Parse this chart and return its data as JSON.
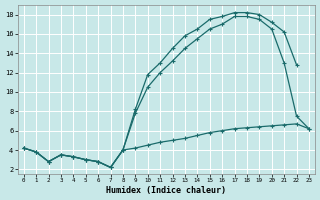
{
  "xlabel": "Humidex (Indice chaleur)",
  "xlim": [
    -0.5,
    23.5
  ],
  "ylim": [
    1.5,
    19.0
  ],
  "yticks": [
    2,
    4,
    6,
    8,
    10,
    12,
    14,
    16,
    18
  ],
  "xticks": [
    0,
    1,
    2,
    3,
    4,
    5,
    6,
    7,
    8,
    9,
    10,
    11,
    12,
    13,
    14,
    15,
    16,
    17,
    18,
    19,
    20,
    21,
    22,
    23
  ],
  "bg_color": "#c8e8e8",
  "grid_color": "#b0d4d4",
  "line_color": "#1a6b6b",
  "line1_x": [
    0,
    1,
    2,
    3,
    4,
    5,
    6,
    7,
    8,
    9,
    10,
    11,
    12,
    13,
    14,
    15,
    16,
    17,
    18,
    19,
    20,
    21,
    22
  ],
  "line1_y": [
    4.2,
    3.8,
    2.8,
    3.5,
    3.3,
    3.0,
    2.8,
    2.2,
    4.0,
    8.2,
    11.8,
    13.0,
    14.5,
    15.8,
    16.5,
    17.5,
    17.8,
    18.2,
    18.2,
    18.0,
    17.2,
    16.2,
    12.8
  ],
  "line2_x": [
    0,
    1,
    2,
    3,
    4,
    5,
    6,
    7,
    8,
    9,
    10,
    11,
    12,
    13,
    14,
    15,
    16,
    17,
    18,
    19,
    20,
    21,
    22,
    23
  ],
  "line2_y": [
    4.2,
    3.8,
    2.8,
    3.5,
    3.3,
    3.0,
    2.8,
    2.2,
    4.0,
    7.8,
    10.5,
    12.0,
    13.2,
    14.5,
    15.5,
    16.5,
    17.0,
    17.8,
    17.8,
    17.5,
    16.5,
    13.0,
    7.5,
    6.2
  ],
  "line3_x": [
    0,
    1,
    2,
    3,
    4,
    5,
    6,
    7,
    8,
    9,
    10,
    11,
    12,
    13,
    14,
    15,
    16,
    17,
    18,
    19,
    20,
    21,
    22,
    23
  ],
  "line3_y": [
    4.2,
    3.8,
    2.8,
    3.5,
    3.3,
    3.0,
    2.8,
    2.2,
    4.0,
    4.2,
    4.5,
    4.8,
    5.0,
    5.2,
    5.5,
    5.8,
    6.0,
    6.2,
    6.3,
    6.4,
    6.5,
    6.6,
    6.7,
    6.2
  ]
}
